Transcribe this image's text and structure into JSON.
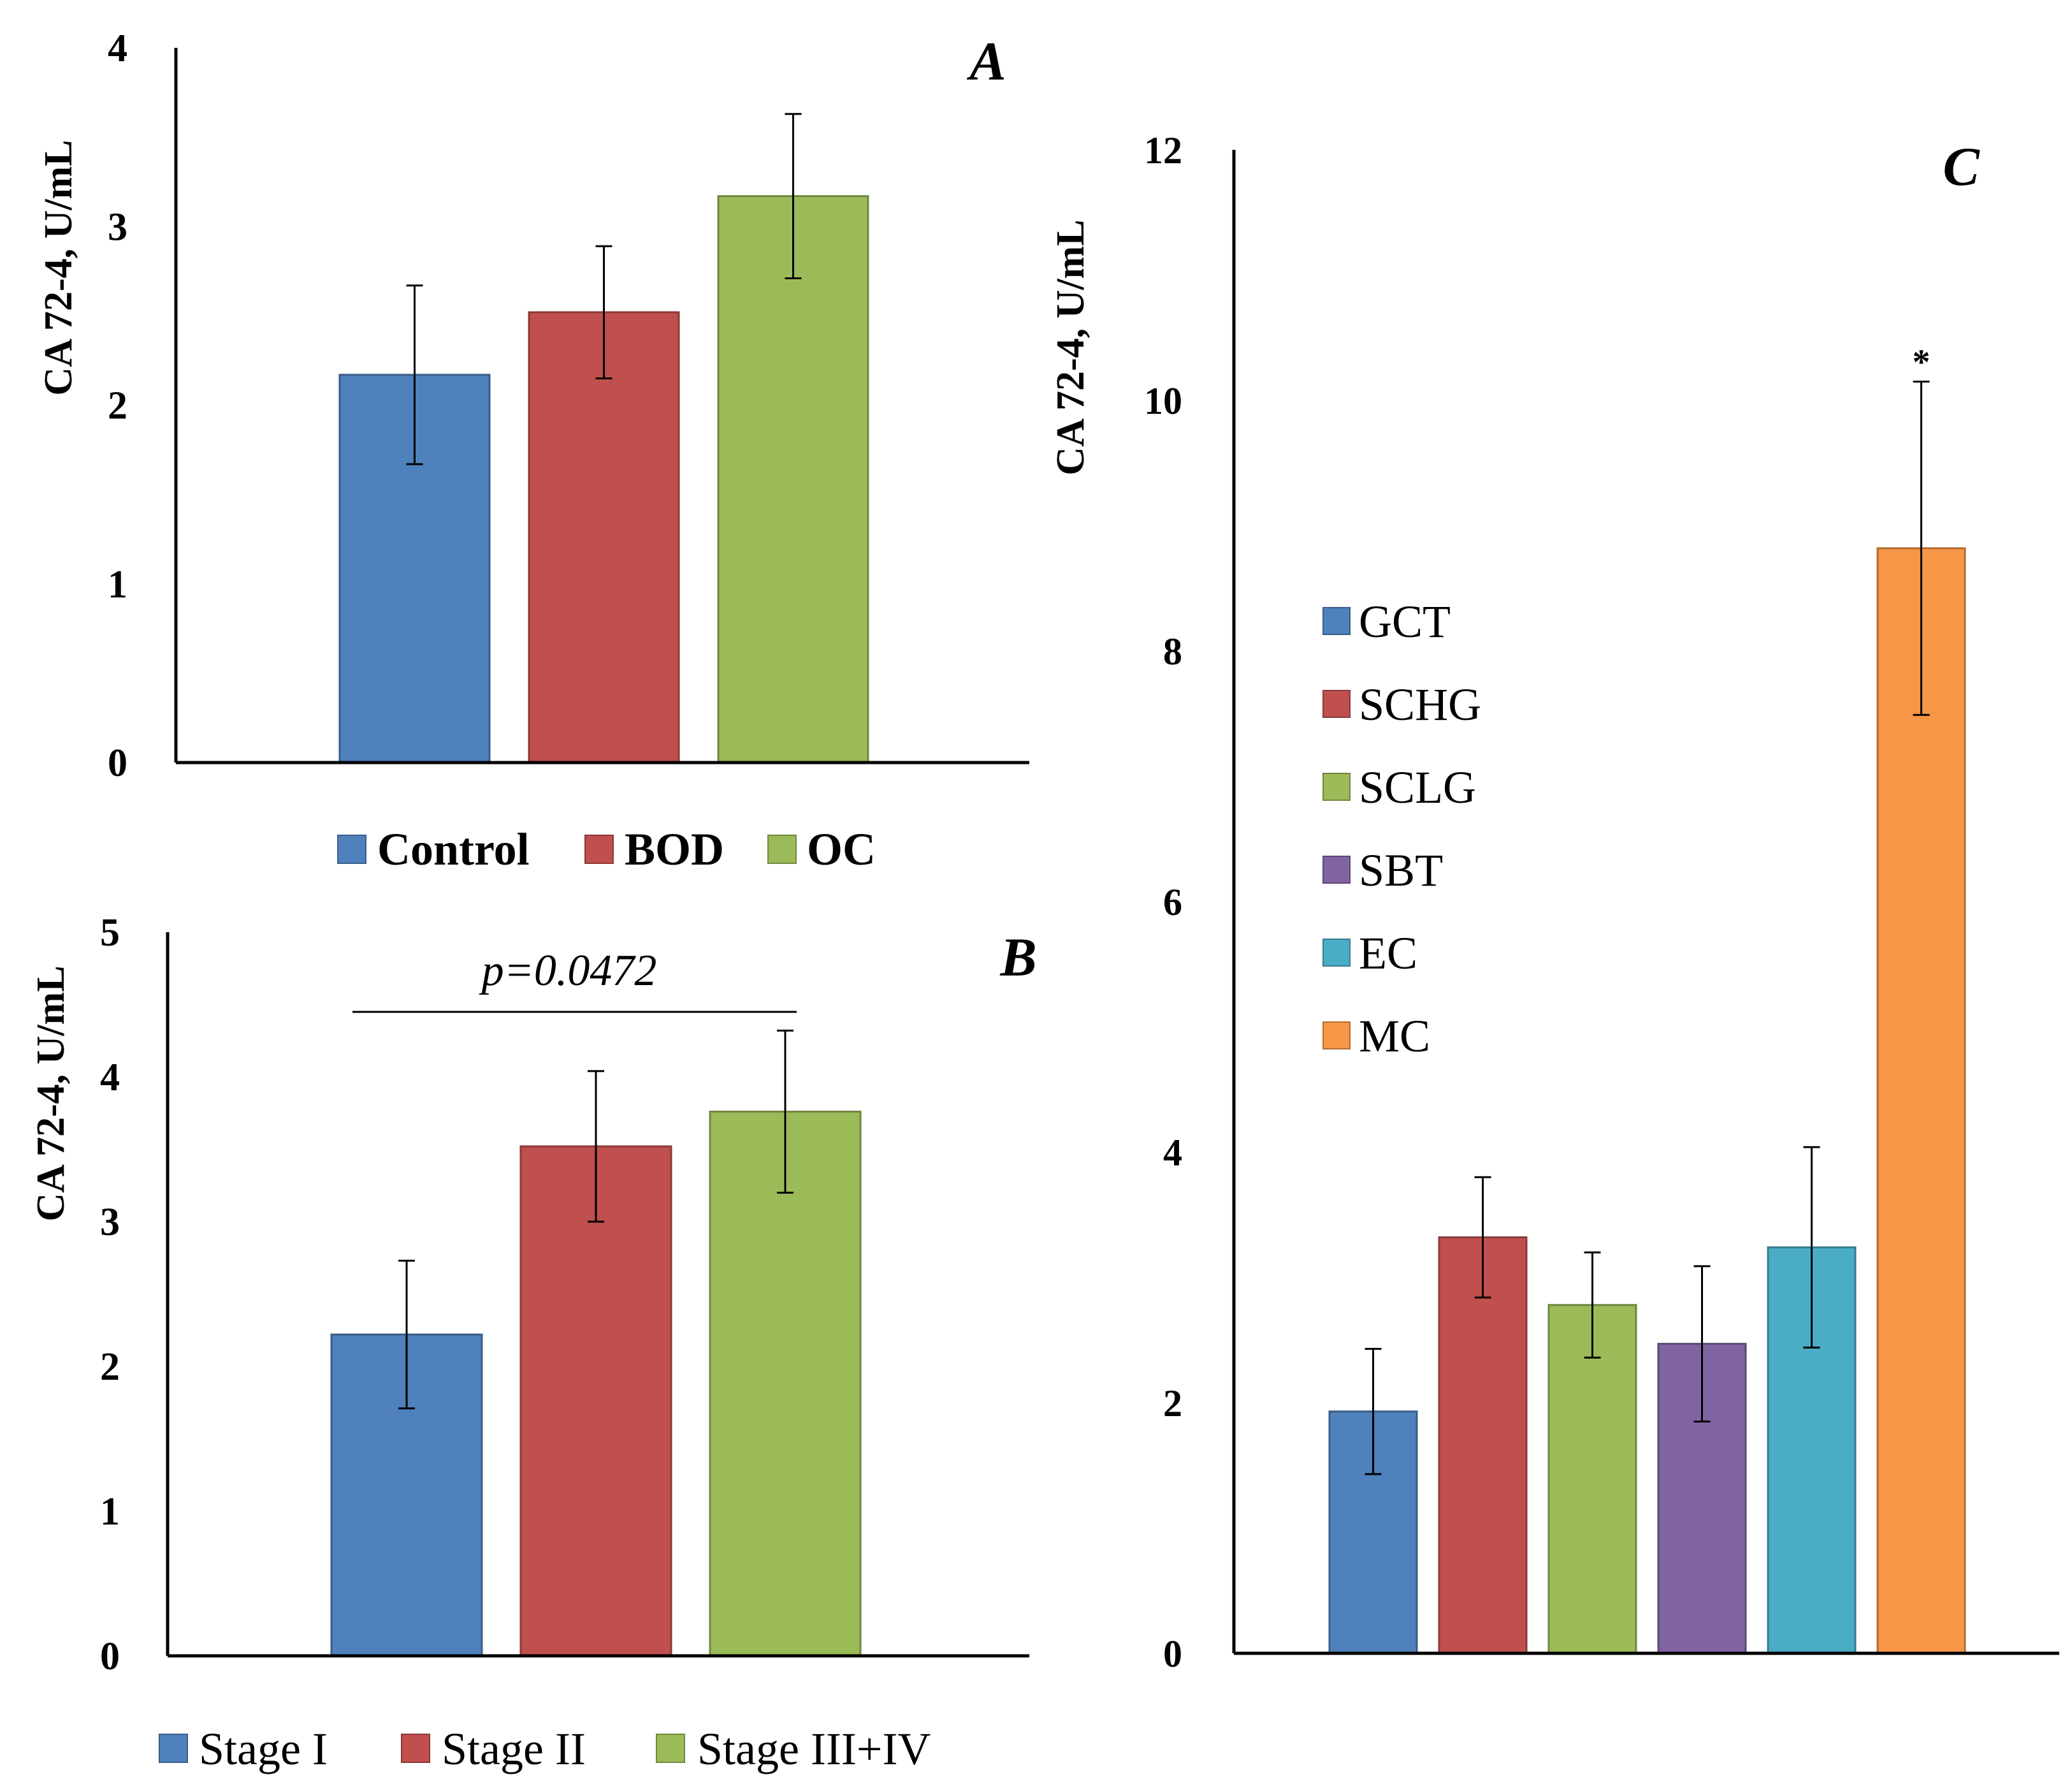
{
  "chart_data": [
    {
      "type": "bar",
      "panel": "A",
      "title": "",
      "xlabel": "",
      "ylabel": "CA 72-4, U/mL",
      "ylim": [
        0,
        4
      ],
      "yticks": [
        0,
        1,
        2,
        3,
        4
      ],
      "categories": [
        "Control",
        "BOD",
        "OC"
      ],
      "values": [
        2.17,
        2.52,
        3.17
      ],
      "errors": [
        0.5,
        0.37,
        0.46
      ],
      "colors": [
        "#4F81BD",
        "#C0504D",
        "#9BBB59"
      ],
      "legend": {
        "position": "bottom",
        "entries": [
          "Control",
          "BOD",
          "OC"
        ]
      }
    },
    {
      "type": "bar",
      "panel": "B",
      "title": "",
      "xlabel": "",
      "ylabel": "CA 72-4, U/mL",
      "ylim": [
        0,
        5
      ],
      "yticks": [
        0,
        1,
        2,
        3,
        4,
        5
      ],
      "categories": [
        "Stage I",
        "Stage II",
        "Stage III+IV"
      ],
      "values": [
        2.22,
        3.52,
        3.76
      ],
      "errors": [
        0.51,
        0.52,
        0.56
      ],
      "colors": [
        "#4F81BD",
        "#C0504D",
        "#9BBB59"
      ],
      "legend": {
        "position": "bottom",
        "entries": [
          "Stage I",
          "Stage II",
          "Stage III+IV"
        ]
      },
      "annotation": {
        "text": "p=0.0472",
        "from": 0,
        "to": 2
      }
    },
    {
      "type": "bar",
      "panel": "C",
      "title": "",
      "xlabel": "",
      "ylabel": "CA 72-4, U/mL",
      "ylim": [
        0,
        12
      ],
      "yticks": [
        0,
        2,
        4,
        6,
        8,
        10,
        12
      ],
      "categories": [
        "GCT",
        "SCHG",
        "SCLG",
        "SBT",
        "EC",
        "MC"
      ],
      "values": [
        1.93,
        3.32,
        2.78,
        2.47,
        3.24,
        8.82
      ],
      "errors": [
        0.5,
        0.48,
        0.42,
        0.62,
        0.8,
        1.33
      ],
      "colors": [
        "#4F81BD",
        "#C0504D",
        "#9BBB59",
        "#8064A2",
        "#4BACC6",
        "#F79646"
      ],
      "legend": {
        "position": "center-left",
        "entries": [
          "GCT",
          "SCHG",
          "SCLG",
          "SBT",
          "EC",
          "MC"
        ]
      },
      "significance": {
        "category": "MC",
        "marker": "*"
      }
    }
  ]
}
